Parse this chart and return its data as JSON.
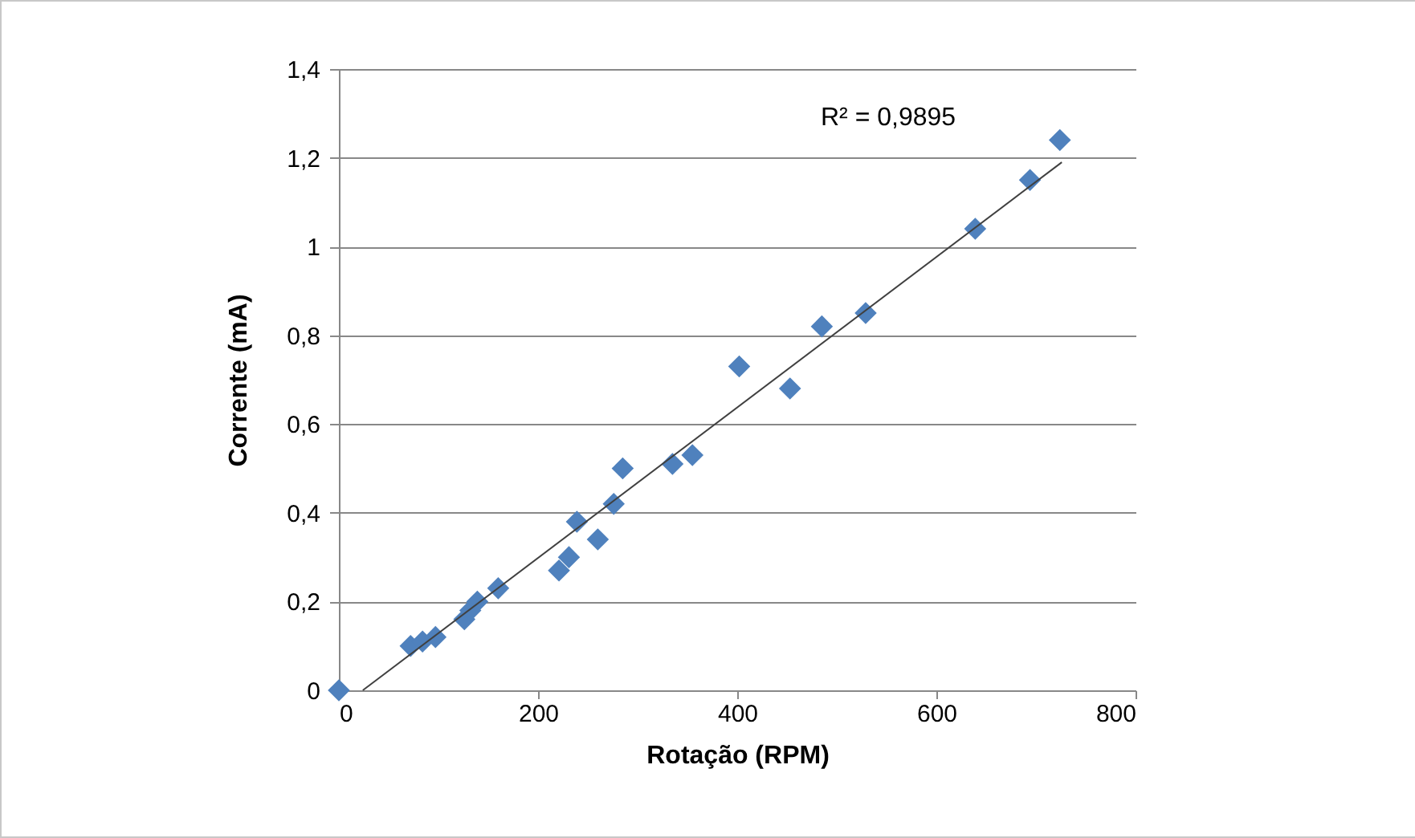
{
  "chart_data": {
    "type": "scatter",
    "xlabel": "Rotação (RPM)",
    "ylabel": "Corrente (mA)",
    "xlim": [
      0,
      800
    ],
    "xticks": [
      0,
      200,
      400,
      600,
      800
    ],
    "ylim": [
      0,
      1.4
    ],
    "yticks": [
      0,
      {
        "value": 0.2,
        "label": "0,2"
      },
      {
        "value": 0.4,
        "label": "0,4"
      },
      {
        "value": 0.6,
        "label": "0,6"
      },
      {
        "value": 0.8,
        "label": "0,8"
      },
      1,
      {
        "value": 1.2,
        "label": "1,2"
      },
      {
        "value": 1.4,
        "label": "1,4"
      }
    ],
    "grid": "y",
    "marker": "diamond",
    "annotations": [
      "R² = 0,9895"
    ],
    "series": [
      {
        "color": "#4f81bd",
        "x": [
          0,
          72,
          84,
          97,
          126,
          132,
          139,
          160,
          221,
          231,
          239,
          260,
          276,
          285,
          335,
          355,
          402,
          453,
          485,
          529,
          639,
          694,
          724
        ],
        "values": [
          0,
          0.1,
          0.11,
          0.12,
          0.16,
          0.18,
          0.2,
          0.23,
          0.27,
          0.3,
          0.38,
          0.34,
          0.42,
          0.5,
          0.51,
          0.53,
          0.73,
          0.68,
          0.82,
          0.85,
          1.04,
          1.15,
          1.24
        ]
      },
      {
        "type": "line",
        "color": "#404040",
        "marker": "none",
        "x": [
          24,
          726
        ],
        "values": [
          0,
          1.19
        ]
      }
    ]
  }
}
